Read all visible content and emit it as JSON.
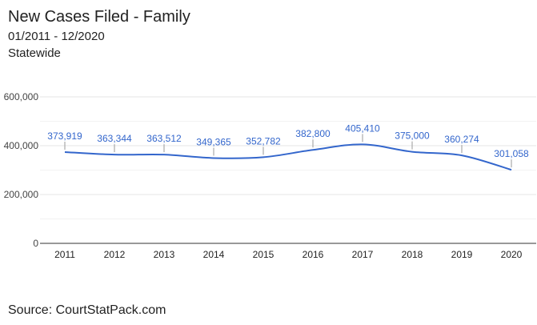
{
  "colors": {
    "line": "#3366cc",
    "label": "#3366cc",
    "grid": "#e6e6e6",
    "baseline": "#333333",
    "axis_text": "#444444"
  },
  "source": "Source: CourtStatPack.com",
  "chart_data": {
    "type": "line",
    "title": "New Cases Filed - Family",
    "subtitle": "01/2011 - 12/2020",
    "subtitle2": "Statewide",
    "categories": [
      "2011",
      "2012",
      "2013",
      "2014",
      "2015",
      "2016",
      "2017",
      "2018",
      "2019",
      "2020"
    ],
    "series": [
      {
        "values": [
          373919,
          363344,
          363512,
          349365,
          352782,
          382800,
          405410,
          375000,
          360274,
          301058
        ],
        "labels": [
          "373,919",
          "363,344",
          "363,512",
          "349,365",
          "352,782",
          "382,800",
          "405,410",
          "375,000",
          "360,274",
          "301,058"
        ]
      }
    ],
    "yticks": [
      0,
      200000,
      400000,
      600000
    ],
    "ytick_labels": [
      "0",
      "200,000",
      "400,000",
      "600,000"
    ],
    "ylim": [
      0,
      600000
    ],
    "grid": true,
    "legend": "none",
    "smooth": true
  }
}
